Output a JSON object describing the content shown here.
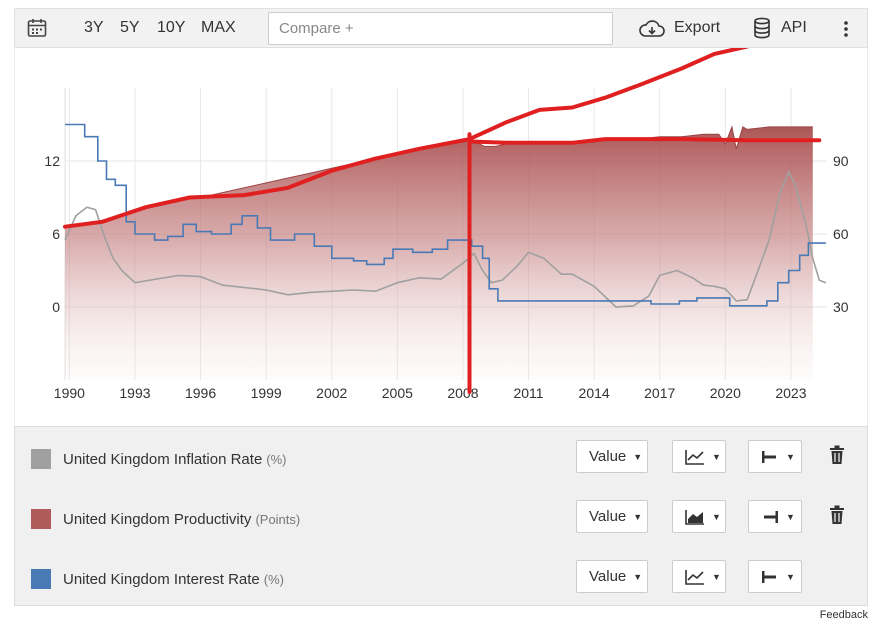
{
  "toolbar": {
    "ranges": [
      "3Y",
      "5Y",
      "10Y",
      "MAX"
    ],
    "compare_placeholder": "Compare +",
    "export_label": "Export",
    "api_label": "API",
    "icons": [
      "calendar-icon",
      "cloud-download-icon",
      "database-icon",
      "more-vertical-icon"
    ]
  },
  "chart_data": {
    "type": "line",
    "x_ticks": [
      "1990",
      "1993",
      "1996",
      "1999",
      "2002",
      "2005",
      "2008",
      "2011",
      "2014",
      "2017",
      "2020",
      "2023"
    ],
    "left_axis": {
      "ticks": [
        "12",
        "6",
        "0"
      ],
      "range": [
        -6,
        18
      ]
    },
    "right_axis": {
      "ticks": [
        "90",
        "60",
        "30"
      ],
      "range": [
        0,
        120
      ]
    },
    "grid": true,
    "series": [
      {
        "name": "United Kingdom Inflation Rate",
        "type": "line",
        "axis": "left",
        "color": "#a0a0a0",
        "x": [
          1989.8,
          1990.3,
          1990.8,
          1991.2,
          1991.6,
          1992.0,
          1992.4,
          1993.0,
          1994.0,
          1995.0,
          1996.0,
          1997.0,
          1998.0,
          1999.0,
          2000.0,
          2001.0,
          2002.0,
          2003.0,
          2004.0,
          2005.0,
          2006.0,
          2007.0,
          2008.0,
          2008.5,
          2008.9,
          2009.3,
          2009.8,
          2010.5,
          2011.0,
          2011.7,
          2012.5,
          2013.0,
          2014.0,
          2015.0,
          2015.8,
          2016.5,
          2017.0,
          2017.8,
          2018.5,
          2019.0,
          2019.5,
          2020.0,
          2020.5,
          2021.0,
          2021.5,
          2022.0,
          2022.5,
          2022.9,
          2023.2,
          2023.7,
          2024.0,
          2024.3,
          2024.6
        ],
        "values": [
          5.5,
          7.5,
          8.2,
          8.0,
          5.8,
          4.0,
          3.0,
          2.0,
          2.3,
          2.6,
          2.5,
          1.8,
          1.6,
          1.4,
          1.0,
          1.2,
          1.3,
          1.4,
          1.3,
          2.0,
          2.4,
          2.3,
          3.6,
          4.4,
          3.0,
          2.0,
          2.2,
          3.4,
          4.5,
          4.0,
          2.7,
          2.7,
          1.7,
          0.0,
          0.1,
          0.9,
          2.6,
          3.0,
          2.4,
          1.8,
          1.7,
          1.5,
          0.5,
          0.6,
          3.0,
          5.5,
          9.4,
          11.1,
          10.0,
          6.7,
          4.0,
          2.2,
          2.0
        ]
      },
      {
        "name": "United Kingdom Productivity",
        "type": "area",
        "axis": "right",
        "color": "#b15a5a",
        "x": [
          1989.8,
          1991.0,
          1992.0,
          1993.0,
          1994.0,
          1995.0,
          1996.0,
          1997.0,
          1998.0,
          1999.0,
          2000.0,
          2001.0,
          2002.0,
          2003.0,
          2004.0,
          2005.0,
          2006.0,
          2007.0,
          2008.0,
          2008.5,
          2009.0,
          2009.5,
          2010.0,
          2011.0,
          2012.0,
          2013.0,
          2014.0,
          2015.0,
          2016.0,
          2017.0,
          2018.0,
          2019.0,
          2019.7,
          2020.0,
          2020.3,
          2020.5,
          2020.8,
          2021.0,
          2022.0,
          2023.0,
          2023.5,
          2024.0
        ],
        "values": [
          63,
          65,
          66,
          70,
          72,
          74,
          75,
          77,
          79,
          81,
          83,
          85,
          87,
          89,
          91,
          93,
          95,
          97,
          99,
          98,
          96,
          96,
          97,
          98,
          98,
          98,
          99,
          99,
          99,
          100,
          100,
          101,
          101,
          97,
          104,
          95,
          104,
          103,
          104,
          104,
          104,
          104
        ]
      },
      {
        "name": "United Kingdom Interest Rate",
        "type": "step",
        "axis": "left",
        "color": "#4a7ab5",
        "x": [
          1989.8,
          1990.7,
          1991.3,
          1991.7,
          1992.1,
          1992.6,
          1993.0,
          1993.9,
          1994.5,
          1995.2,
          1995.8,
          1996.5,
          1997.4,
          1997.9,
          1998.6,
          1999.2,
          1999.8,
          2000.3,
          2001.2,
          2002.0,
          2003.0,
          2003.6,
          2004.4,
          2004.8,
          2005.7,
          2006.6,
          2007.3,
          2007.9,
          2008.4,
          2008.9,
          2009.2,
          2009.6,
          2016.6,
          2017.9,
          2018.7,
          2020.2,
          2021.9,
          2022.4,
          2022.9,
          2023.4,
          2023.8,
          2024.6
        ],
        "values": [
          15.0,
          14.0,
          12.0,
          10.5,
          10.0,
          7.0,
          6.0,
          5.5,
          5.8,
          6.8,
          6.2,
          6.0,
          6.8,
          7.5,
          6.5,
          5.5,
          5.5,
          6.0,
          5.0,
          4.0,
          3.8,
          3.5,
          4.0,
          4.75,
          4.5,
          4.75,
          5.5,
          5.5,
          5.0,
          4.0,
          1.5,
          0.5,
          0.25,
          0.5,
          0.75,
          0.1,
          0.5,
          2.0,
          3.0,
          4.25,
          5.25,
          5.25
        ]
      }
    ]
  },
  "legend": [
    {
      "name": "United Kingdom Inflation Rate",
      "unit": "(%)",
      "color": "#a0a0a0",
      "value_label": "Value",
      "chart_icon": "line-chart-icon",
      "axis_icon": "axis-left-icon",
      "deletable": true
    },
    {
      "name": "United Kingdom Productivity",
      "unit": "(Points)",
      "color": "#b15a5a",
      "value_label": "Value",
      "chart_icon": "area-chart-icon",
      "axis_icon": "axis-right-icon",
      "deletable": true
    },
    {
      "name": "United Kingdom Interest Rate",
      "unit": "(%)",
      "color": "#4a7ab5",
      "value_label": "Value",
      "chart_icon": "line-chart-icon",
      "axis_icon": "axis-left-icon",
      "deletable": false
    }
  ],
  "feedback_label": "Feedback"
}
